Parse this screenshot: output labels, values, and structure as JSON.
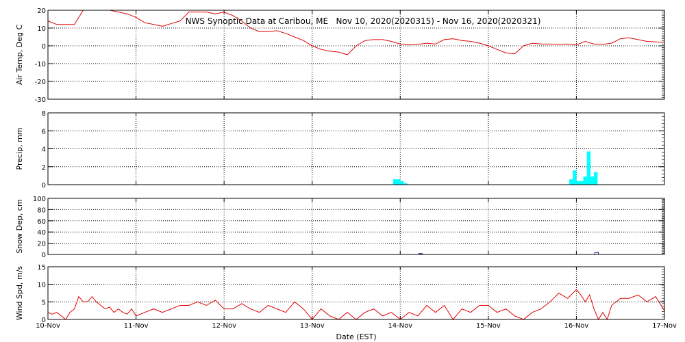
{
  "chart_data": {
    "title": "NWS Synoptic Data at Caribou, ME   Nov 10, 2020(2020315) - Nov 16, 2020(2020321)",
    "xlabel": "Date (EST)",
    "x_ticks": [
      "10-Nov",
      "11-Nov",
      "12-Nov",
      "13-Nov",
      "14-Nov",
      "15-Nov",
      "16-Nov",
      "17-Nov"
    ],
    "x_range_days": [
      0,
      7
    ],
    "colors": {
      "temp_line": "#e00000",
      "precip": "#00ffff",
      "snow": "#000080",
      "wind_line": "#e00000",
      "frame": "#000000"
    },
    "panels": [
      {
        "id": "air-temp",
        "type": "line",
        "ylabel": "Air Temp, Deg C",
        "ylim": [
          -30,
          20
        ],
        "y_ticks": [
          20,
          10,
          0,
          -10,
          -20,
          -30
        ],
        "series": [
          {
            "x": [
              0,
              0.1,
              0.3,
              0.4,
              0.5,
              0.7,
              0.9,
              1.0,
              1.1,
              1.2,
              1.3,
              1.5,
              1.6,
              1.8,
              1.9,
              2.0,
              2.1,
              2.2,
              2.3,
              2.4,
              2.5,
              2.6,
              2.7,
              2.8,
              2.9,
              3.0,
              3.1,
              3.2,
              3.3,
              3.4,
              3.5,
              3.6,
              3.7,
              3.8,
              3.9,
              4.0,
              4.1,
              4.2,
              4.3,
              4.4,
              4.5,
              4.6,
              4.7,
              4.8,
              4.9,
              5.0,
              5.1,
              5.2,
              5.3,
              5.4,
              5.5,
              5.6,
              5.7,
              5.8,
              5.9,
              6.0,
              6.1,
              6.2,
              6.3,
              6.4,
              6.5,
              6.6,
              6.7,
              6.8,
              6.9,
              7.0
            ],
            "y": [
              14,
              12,
              12,
              20,
              22,
              20,
              18,
              16,
              13,
              12,
              11,
              14,
              19,
              19,
              18,
              19,
              17,
              14,
              10,
              8,
              8,
              8.5,
              7,
              5,
              3,
              0,
              -2,
              -3,
              -3.5,
              -5,
              0,
              3,
              3.5,
              3.5,
              2.5,
              1,
              0.5,
              0.8,
              1.5,
              1,
              3.5,
              4,
              3,
              2.5,
              1.5,
              0,
              -2,
              -4,
              -4.5,
              0,
              1.5,
              1,
              1,
              0.8,
              1,
              0.5,
              2.5,
              1,
              0.8,
              1.5,
              4,
              4.5,
              3.5,
              2.5,
              2.2,
              2
            ]
          }
        ]
      },
      {
        "id": "precip",
        "type": "bar",
        "ylabel": "Precip, mm",
        "ylim": [
          0,
          8
        ],
        "y_ticks": [
          8,
          6,
          4,
          2,
          0
        ],
        "bar_width_days": 0.04167,
        "x": [
          3.94,
          3.98,
          4.02,
          4.06,
          5.94,
          5.98,
          6.02,
          6.06,
          6.1,
          6.14,
          6.18,
          6.22
        ],
        "values": [
          0.6,
          0.6,
          0.4,
          0.15,
          0.6,
          1.6,
          0.4,
          0.4,
          0.9,
          3.7,
          0.9,
          1.4
        ]
      },
      {
        "id": "snow-depth",
        "type": "bar",
        "ylabel": "Snow Dep, cm",
        "ylim": [
          0,
          100
        ],
        "y_ticks": [
          100,
          80,
          60,
          40,
          20,
          0
        ],
        "bar_width_days": 0.04167,
        "x": [
          4.23,
          6.23
        ],
        "values": [
          1.5,
          3.5
        ]
      },
      {
        "id": "wind-speed",
        "type": "line",
        "ylabel": "Wind Spd, m/s",
        "ylim": [
          0,
          15
        ],
        "y_ticks": [
          15,
          10,
          5,
          0
        ],
        "series": [
          {
            "x": [
              0,
              0.05,
              0.1,
              0.15,
              0.2,
              0.25,
              0.3,
              0.35,
              0.4,
              0.45,
              0.5,
              0.55,
              0.6,
              0.65,
              0.7,
              0.75,
              0.8,
              0.85,
              0.9,
              0.95,
              1.0,
              1.1,
              1.2,
              1.3,
              1.4,
              1.5,
              1.6,
              1.7,
              1.8,
              1.9,
              2.0,
              2.1,
              2.2,
              2.3,
              2.4,
              2.5,
              2.6,
              2.7,
              2.8,
              2.9,
              3.0,
              3.1,
              3.2,
              3.3,
              3.4,
              3.5,
              3.6,
              3.7,
              3.8,
              3.9,
              4.0,
              4.1,
              4.2,
              4.3,
              4.4,
              4.5,
              4.6,
              4.7,
              4.8,
              4.9,
              5.0,
              5.1,
              5.2,
              5.3,
              5.4,
              5.5,
              5.6,
              5.7,
              5.8,
              5.9,
              6.0,
              6.05,
              6.1,
              6.15,
              6.2,
              6.25,
              6.3,
              6.35,
              6.4,
              6.5,
              6.6,
              6.7,
              6.8,
              6.9,
              7.0
            ],
            "y": [
              2,
              1.5,
              2,
              1,
              0,
              2,
              3,
              6.5,
              5,
              5,
              6.5,
              5,
              4,
              3,
              3.5,
              2,
              3,
              2,
              1.5,
              3,
              1,
              2,
              3,
              2,
              3,
              4,
              4,
              5,
              4,
              5.5,
              3,
              3,
              4.5,
              3,
              2,
              4,
              3,
              2,
              5,
              3,
              0,
              3,
              1,
              0,
              2,
              0,
              2,
              3,
              1,
              2,
              0,
              2,
              1,
              4,
              2,
              4,
              0,
              3,
              2,
              4,
              4,
              2,
              3,
              1,
              0,
              2,
              3,
              5,
              7.5,
              6,
              8.5,
              7,
              5,
              7,
              3,
              0,
              2,
              0,
              4,
              6,
              6,
              7,
              5,
              6.5,
              2.5
            ]
          }
        ]
      }
    ]
  }
}
